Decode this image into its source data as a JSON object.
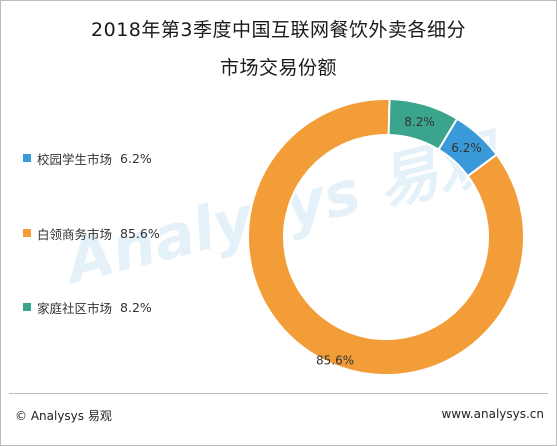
{
  "chart_data": {
    "type": "pie",
    "title": "2018年第3季度中国互联网餐饮外卖各细分",
    "subtitle": "市场交易份额",
    "donut": true,
    "legend_position": "left",
    "slices": [
      {
        "name": "校园学生市场",
        "value": 6.2,
        "label": "6.2%",
        "color": "#3a9ad9"
      },
      {
        "name": "白领商务市场",
        "value": 85.6,
        "label": "85.6%",
        "color": "#f29d38"
      },
      {
        "name": "家庭社区市场",
        "value": 8.2,
        "label": "8.2%",
        "color": "#3aa58c"
      }
    ]
  },
  "footer": {
    "left": "© Analysys 易观",
    "right": "www.analysys.cn"
  },
  "watermark": "Analysys 易观"
}
